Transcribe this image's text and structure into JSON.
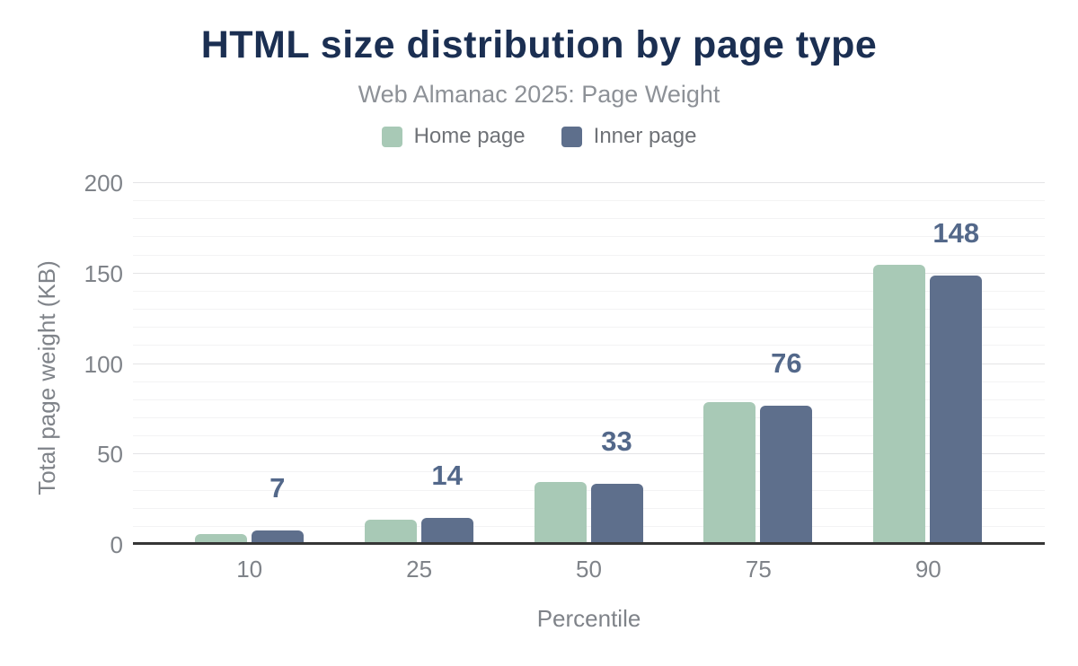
{
  "header": {
    "title": "HTML size distribution by page type",
    "subtitle": "Web Almanac 2025: Page Weight"
  },
  "chart_data": {
    "type": "bar",
    "title": "HTML size distribution by page type",
    "subtitle": "Web Almanac 2025: Page Weight",
    "categories": [
      "10",
      "25",
      "50",
      "75",
      "90"
    ],
    "series": [
      {
        "name": "Home page",
        "color": "#a8c9b6",
        "values": [
          5,
          13,
          34,
          78,
          154
        ]
      },
      {
        "name": "Inner page",
        "color": "#5e6f8c",
        "values": [
          7,
          14,
          33,
          76,
          148
        ]
      }
    ],
    "data_labels": {
      "labeled_series": "Inner page",
      "values": [
        "7",
        "14",
        "33",
        "76",
        "148"
      ],
      "color": "#53688a"
    },
    "xlabel": "Percentile",
    "ylabel": "Total page weight (KB)",
    "ylim": [
      0,
      200
    ],
    "yticks": [
      0,
      50,
      100,
      150,
      200
    ],
    "minor_grid_step": 10,
    "major_grid_step": 50,
    "grid": "horizontal",
    "legend_position": "top",
    "colors": {
      "title_text": "#1b2f52",
      "subtitle_text": "#8d9197",
      "legend_text": "#6f7277",
      "axis_text": "#7f8389",
      "axis_line": "#363636",
      "major_gridline": "#e4e4e6",
      "minor_gridline": "#f3f3f4",
      "background": "#ffffff"
    }
  }
}
